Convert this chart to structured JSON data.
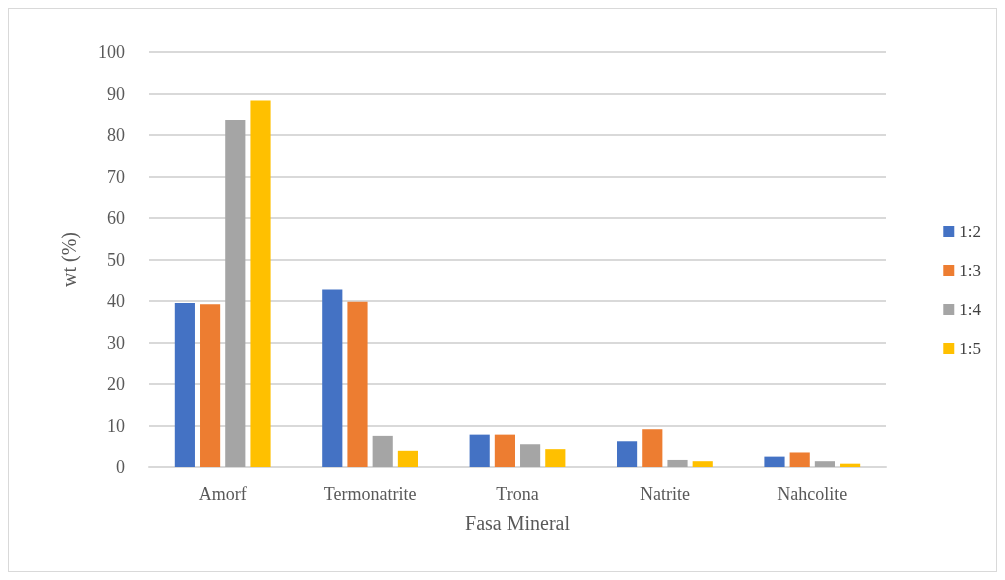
{
  "chart_data": {
    "type": "bar",
    "xlabel": "Fasa Mineral",
    "ylabel": "wt (%)",
    "categories": [
      "Amorf",
      "Termonatrite",
      "Trona",
      "Natrite",
      "Nahcolite"
    ],
    "series": [
      {
        "name": "1:2",
        "color": "#4472c4",
        "values": [
          39.5,
          42.8,
          7.8,
          6.2,
          2.5
        ]
      },
      {
        "name": "1:3",
        "color": "#ed7d31",
        "values": [
          39.2,
          39.8,
          7.8,
          9.1,
          3.5
        ]
      },
      {
        "name": "1:4",
        "color": "#a5a5a5",
        "values": [
          83.6,
          7.5,
          5.5,
          1.7,
          1.4
        ]
      },
      {
        "name": "1:5",
        "color": "#ffc000",
        "values": [
          88.3,
          3.9,
          4.3,
          1.4,
          0.8
        ]
      }
    ],
    "ylim": [
      0,
      100
    ],
    "yticks": [
      0,
      10,
      20,
      30,
      40,
      50,
      60,
      70,
      80,
      90,
      100
    ],
    "grid": "y",
    "legend": "right"
  }
}
